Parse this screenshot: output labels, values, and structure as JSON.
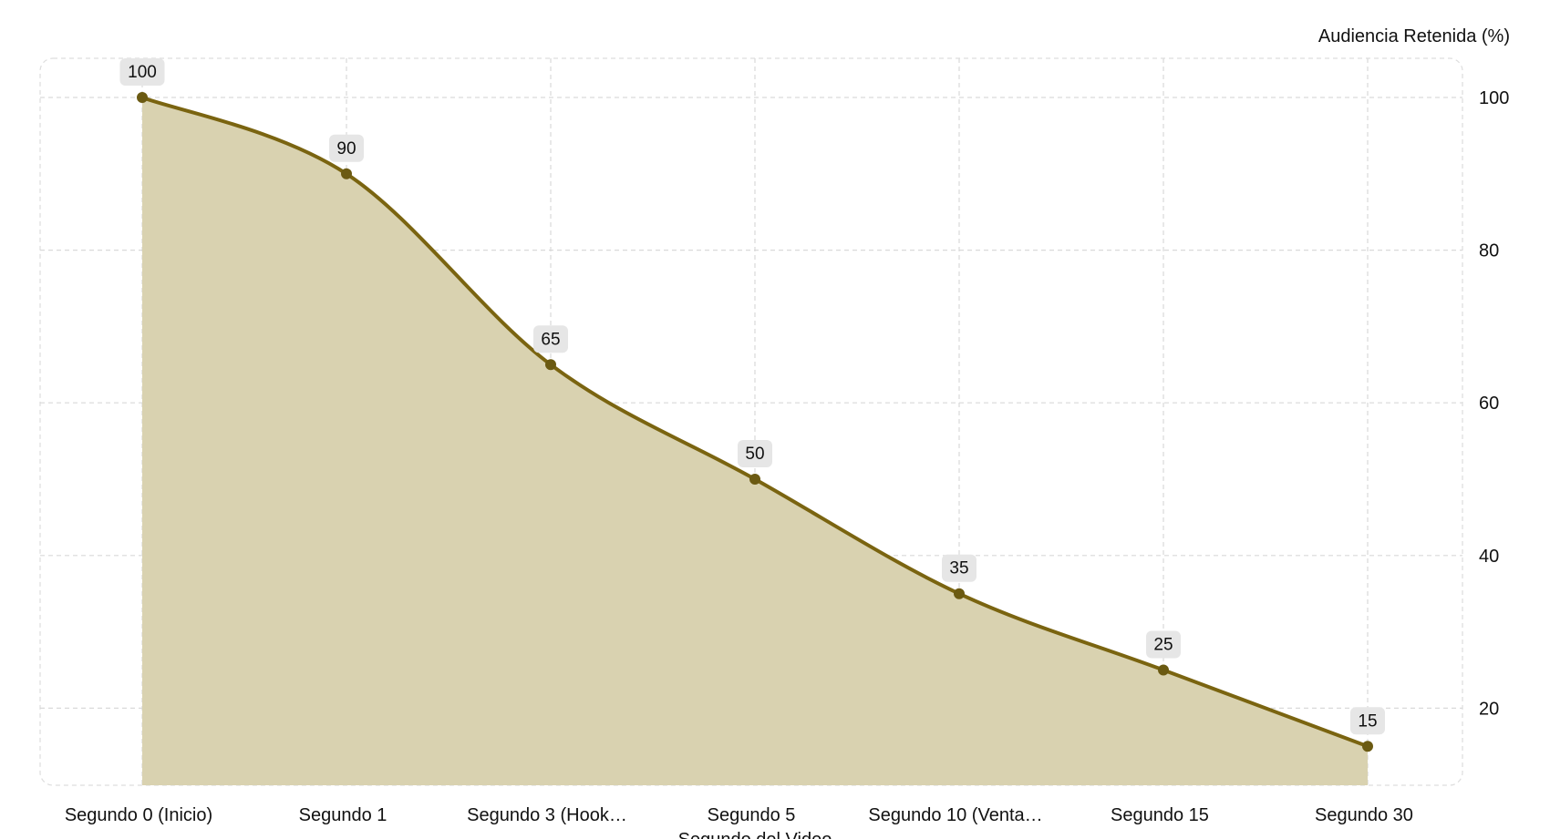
{
  "chart_data": {
    "type": "area",
    "categories": [
      "Segundo 0 (Inicio)",
      "Segundo 1",
      "Segundo 3 (Hook…",
      "Segundo 5",
      "Segundo 10 (Venta…",
      "Segundo 15",
      "Segundo 30"
    ],
    "series": [
      {
        "values": [
          100,
          90,
          65,
          50,
          35,
          25,
          15
        ]
      }
    ],
    "xlabel": "Segundo del Video",
    "ylabel": "Audiencia Retenida (%)",
    "ylim": [
      10,
      105
    ],
    "yticks": [
      20,
      40,
      60,
      80,
      100
    ],
    "y_axis_side": "right",
    "grid": true,
    "data_labels": true,
    "colors": {
      "line": "#7a6410",
      "fill": "#d9d2b0",
      "marker": "#6b5a12",
      "label_bg": "#e6e6e6",
      "grid": "#d9d9d9"
    }
  }
}
